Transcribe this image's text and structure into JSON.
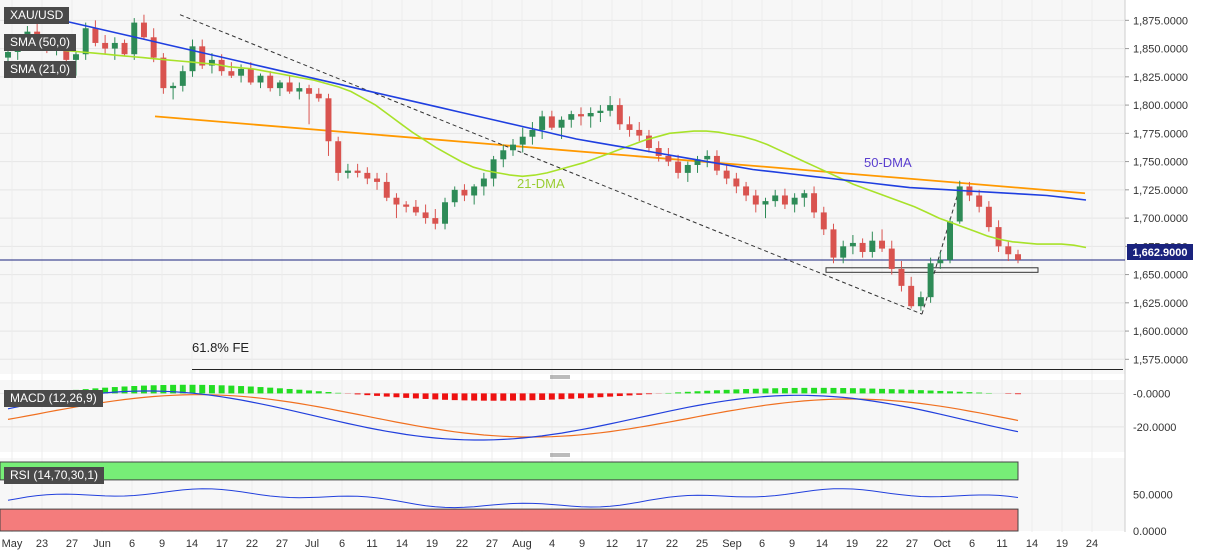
{
  "chart_data": [
    {
      "type": "candlestick",
      "symbol": "XAU/USD",
      "last_price_label": "1,662.9000",
      "last_price": 1662.9,
      "y_ticks": [
        "1,875.0000",
        "1,850.0000",
        "1,825.0000",
        "1,800.0000",
        "1,775.0000",
        "1,750.0000",
        "1,725.0000",
        "1,700.0000",
        "1,675.0000",
        "1,650.0000",
        "1,625.0000",
        "1,600.0000",
        "1,575.0000"
      ],
      "y_values": [
        1875,
        1850,
        1825,
        1800,
        1775,
        1750,
        1725,
        1700,
        1675,
        1650,
        1625,
        1600,
        1575
      ],
      "ylim": [
        1562,
        1893
      ],
      "x_tick_labels": [
        "May",
        "23",
        "27",
        "Jun",
        "6",
        "9",
        "14",
        "17",
        "22",
        "27",
        "Jul",
        "6",
        "11",
        "14",
        "19",
        "22",
        "27",
        "Aug",
        "4",
        "9",
        "12",
        "17",
        "22",
        "25",
        "Sep",
        "6",
        "9",
        "14",
        "19",
        "22",
        "27",
        "Oct",
        "6",
        "11",
        "14",
        "19",
        "24"
      ],
      "legend": [
        "XAU/USD",
        "SMA (50,0)",
        "SMA (21,0)"
      ],
      "annotations": [
        "21-DMA",
        "50-DMA",
        "61.8% FE"
      ],
      "fib_level": 1566,
      "support_zone": [
        1652,
        1656
      ],
      "resistance_line": [
        [
          1790,
          1890
        ],
        [
          1722,
          1862
        ]
      ],
      "trend_line": [
        [
          1795,
          1880
        ],
        [
          1615,
          1836
        ]
      ],
      "colors": {
        "up": "#2e8b57",
        "down": "#d9534f",
        "sma50": "#1f3fe0",
        "sma21": "#a8e22a",
        "trend": "#ff9900",
        "price_line": "#1a237e"
      },
      "candles": [
        [
          1842,
          1850,
          1830,
          1847
        ],
        [
          1847,
          1858,
          1840,
          1853
        ],
        [
          1853,
          1870,
          1849,
          1865
        ],
        [
          1865,
          1872,
          1855,
          1857
        ],
        [
          1857,
          1862,
          1846,
          1850
        ],
        [
          1850,
          1860,
          1844,
          1855
        ],
        [
          1855,
          1858,
          1838,
          1840
        ],
        [
          1840,
          1848,
          1826,
          1845
        ],
        [
          1845,
          1873,
          1840,
          1868
        ],
        [
          1868,
          1875,
          1852,
          1855
        ],
        [
          1855,
          1862,
          1845,
          1850
        ],
        [
          1850,
          1860,
          1840,
          1855
        ],
        [
          1855,
          1858,
          1843,
          1845
        ],
        [
          1845,
          1877,
          1840,
          1873
        ],
        [
          1873,
          1880,
          1858,
          1860
        ],
        [
          1860,
          1868,
          1838,
          1842
        ],
        [
          1842,
          1846,
          1810,
          1815
        ],
        [
          1815,
          1820,
          1805,
          1817
        ],
        [
          1817,
          1835,
          1812,
          1830
        ],
        [
          1830,
          1858,
          1825,
          1852
        ],
        [
          1852,
          1858,
          1832,
          1835
        ],
        [
          1835,
          1846,
          1828,
          1840
        ],
        [
          1840,
          1845,
          1826,
          1830
        ],
        [
          1830,
          1838,
          1824,
          1826
        ],
        [
          1826,
          1836,
          1820,
          1832
        ],
        [
          1832,
          1838,
          1818,
          1820
        ],
        [
          1820,
          1828,
          1815,
          1826
        ],
        [
          1826,
          1830,
          1812,
          1815
        ],
        [
          1815,
          1822,
          1808,
          1820
        ],
        [
          1820,
          1826,
          1810,
          1812
        ],
        [
          1812,
          1820,
          1805,
          1815
        ],
        [
          1815,
          1818,
          1783,
          1810
        ],
        [
          1810,
          1815,
          1803,
          1806
        ],
        [
          1806,
          1810,
          1755,
          1768
        ],
        [
          1768,
          1772,
          1733,
          1740
        ],
        [
          1740,
          1748,
          1735,
          1742
        ],
        [
          1742,
          1748,
          1736,
          1740
        ],
        [
          1740,
          1745,
          1730,
          1735
        ],
        [
          1735,
          1740,
          1725,
          1732
        ],
        [
          1732,
          1740,
          1715,
          1718
        ],
        [
          1718,
          1722,
          1700,
          1712
        ],
        [
          1712,
          1715,
          1705,
          1710
        ],
        [
          1710,
          1716,
          1702,
          1705
        ],
        [
          1705,
          1712,
          1695,
          1700
        ],
        [
          1700,
          1708,
          1690,
          1695
        ],
        [
          1695,
          1718,
          1690,
          1714
        ],
        [
          1714,
          1728,
          1710,
          1725
        ],
        [
          1725,
          1730,
          1715,
          1720
        ],
        [
          1720,
          1730,
          1712,
          1728
        ],
        [
          1728,
          1740,
          1720,
          1735
        ],
        [
          1735,
          1755,
          1728,
          1752
        ],
        [
          1752,
          1765,
          1745,
          1760
        ],
        [
          1760,
          1770,
          1755,
          1765
        ],
        [
          1765,
          1780,
          1758,
          1772
        ],
        [
          1772,
          1785,
          1765,
          1778
        ],
        [
          1778,
          1795,
          1770,
          1790
        ],
        [
          1790,
          1795,
          1778,
          1780
        ],
        [
          1780,
          1790,
          1770,
          1787
        ],
        [
          1787,
          1795,
          1780,
          1792
        ],
        [
          1792,
          1798,
          1782,
          1790
        ],
        [
          1790,
          1798,
          1780,
          1793
        ],
        [
          1793,
          1800,
          1785,
          1795
        ],
        [
          1795,
          1808,
          1790,
          1800
        ],
        [
          1800,
          1806,
          1778,
          1783
        ],
        [
          1783,
          1790,
          1772,
          1778
        ],
        [
          1778,
          1785,
          1768,
          1773
        ],
        [
          1773,
          1778,
          1758,
          1762
        ],
        [
          1762,
          1768,
          1750,
          1755
        ],
        [
          1755,
          1762,
          1746,
          1750
        ],
        [
          1750,
          1756,
          1735,
          1740
        ],
        [
          1740,
          1750,
          1732,
          1747
        ],
        [
          1747,
          1755,
          1740,
          1752
        ],
        [
          1752,
          1760,
          1745,
          1755
        ],
        [
          1755,
          1760,
          1738,
          1742
        ],
        [
          1742,
          1748,
          1730,
          1735
        ],
        [
          1735,
          1740,
          1722,
          1728
        ],
        [
          1728,
          1732,
          1715,
          1720
        ],
        [
          1720,
          1725,
          1705,
          1712
        ],
        [
          1712,
          1718,
          1700,
          1715
        ],
        [
          1715,
          1725,
          1710,
          1720
        ],
        [
          1720,
          1726,
          1708,
          1712
        ],
        [
          1712,
          1722,
          1705,
          1718
        ],
        [
          1718,
          1725,
          1710,
          1722
        ],
        [
          1722,
          1728,
          1700,
          1705
        ],
        [
          1705,
          1710,
          1685,
          1690
        ],
        [
          1690,
          1695,
          1660,
          1665
        ],
        [
          1665,
          1680,
          1660,
          1675
        ],
        [
          1675,
          1685,
          1668,
          1678
        ],
        [
          1678,
          1682,
          1665,
          1670
        ],
        [
          1670,
          1688,
          1665,
          1680
        ],
        [
          1680,
          1690,
          1670,
          1673
        ],
        [
          1673,
          1680,
          1650,
          1655
        ],
        [
          1655,
          1662,
          1635,
          1640
        ],
        [
          1640,
          1648,
          1620,
          1622
        ],
        [
          1622,
          1635,
          1618,
          1630
        ],
        [
          1630,
          1665,
          1625,
          1660
        ],
        [
          1660,
          1670,
          1655,
          1663
        ],
        [
          1663,
          1700,
          1660,
          1697
        ],
        [
          1697,
          1733,
          1695,
          1728
        ],
        [
          1728,
          1732,
          1715,
          1720
        ],
        [
          1720,
          1725,
          1705,
          1710
        ],
        [
          1710,
          1715,
          1688,
          1692
        ],
        [
          1692,
          1698,
          1670,
          1675
        ],
        [
          1675,
          1680,
          1662,
          1668
        ],
        [
          1668,
          1672,
          1660,
          1663
        ]
      ],
      "sma21": [
        1852,
        1851,
        1850,
        1849,
        1849,
        1848,
        1847,
        1846,
        1845,
        1844,
        1843,
        1842,
        1841,
        1840,
        1839,
        1838,
        1837,
        1836,
        1834,
        1833,
        1832,
        1830,
        1828,
        1826,
        1824,
        1822,
        1819,
        1816,
        1812,
        1806,
        1800,
        1792,
        1784,
        1776,
        1769,
        1762,
        1756,
        1750,
        1745,
        1742,
        1740,
        1738,
        1737,
        1738,
        1740,
        1743,
        1746,
        1749,
        1753,
        1757,
        1761,
        1765,
        1769,
        1772,
        1775,
        1776,
        1777,
        1777,
        1776,
        1774,
        1772,
        1769,
        1765,
        1760,
        1755,
        1750,
        1745,
        1740,
        1735,
        1730,
        1726,
        1722,
        1718,
        1714,
        1710,
        1705,
        1700,
        1696,
        1692,
        1688,
        1684,
        1681,
        1679,
        1678,
        1677,
        1677,
        1677,
        1676,
        1674
      ],
      "sma50": [
        1885,
        1882,
        1878,
        1874,
        1870,
        1866,
        1862,
        1858,
        1854,
        1850,
        1846,
        1842,
        1838,
        1834,
        1830,
        1826,
        1822,
        1818,
        1814,
        1810,
        1806,
        1802,
        1798,
        1794,
        1790,
        1786,
        1782,
        1778,
        1774,
        1770,
        1767,
        1764,
        1761,
        1758,
        1755,
        1752,
        1749,
        1746,
        1743,
        1741,
        1739,
        1737,
        1735,
        1733,
        1731,
        1729,
        1727,
        1726,
        1725,
        1724,
        1723,
        1722,
        1721,
        1720,
        1718,
        1716
      ]
    },
    {
      "type": "histogram+line",
      "label": "MACD (12,26,9)",
      "y_ticks": [
        "-0.0000",
        "-20.0000"
      ],
      "y_values": [
        0,
        -20
      ],
      "ylim": [
        -35,
        8
      ]
    },
    {
      "type": "line",
      "label": "RSI (14,70,30,1)",
      "y_ticks": [
        "50.0000",
        "0.0000"
      ],
      "y_values": [
        50,
        0
      ],
      "ylim": [
        0,
        100
      ],
      "bands": [
        70,
        30
      ]
    }
  ]
}
